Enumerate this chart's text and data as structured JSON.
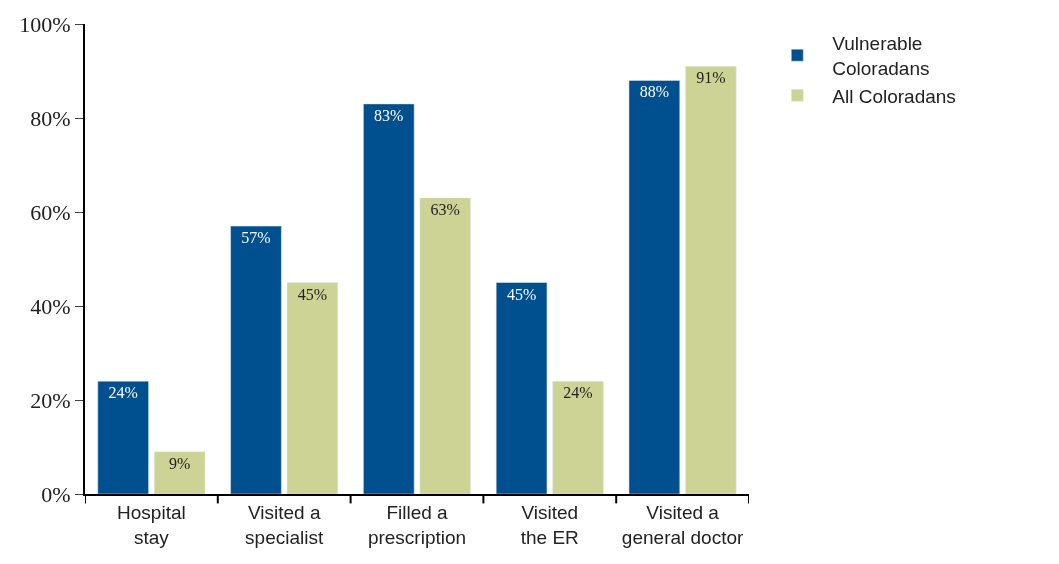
{
  "chart_data": {
    "type": "bar",
    "categories": [
      "Hospital\nstay",
      "Visited a\nspecialist",
      "Filled a\nprescription",
      "Visited\nthe ER",
      "Visited a\ngeneral doctor"
    ],
    "series": [
      {
        "name": "Vulnerable\nColoradans",
        "color": "#00508f",
        "values": [
          24,
          57,
          83,
          45,
          88
        ],
        "value_labels": [
          "24%",
          "57%",
          "83%",
          "45%",
          "88%"
        ]
      },
      {
        "name": "All Coloradans",
        "color": "#cdd394",
        "values": [
          9,
          45,
          63,
          24,
          91
        ],
        "value_labels": [
          "9%",
          "45%",
          "63%",
          "24%",
          "91%"
        ]
      }
    ],
    "ylim": [
      0,
      100
    ],
    "yticks": [
      {
        "value": 0,
        "label": "0%"
      },
      {
        "value": 20,
        "label": "20%"
      },
      {
        "value": 40,
        "label": "40%"
      },
      {
        "value": 60,
        "label": "60%"
      },
      {
        "value": 80,
        "label": "80%"
      },
      {
        "value": 100,
        "label": "100%"
      }
    ],
    "legend": "top right"
  }
}
